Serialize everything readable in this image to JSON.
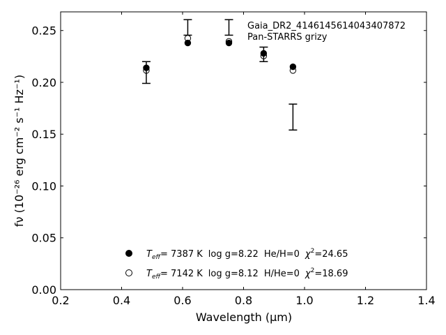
{
  "chart_data": {
    "type": "scatter",
    "title": "",
    "xlabel": "Wavelength",
    "xlabel_unit": "(μm)",
    "ylabel": "fν (10⁻²⁶ erg cm⁻² s⁻¹ Hz⁻¹)",
    "xlim": [
      0.2,
      1.4
    ],
    "ylim": [
      0.0,
      0.268
    ],
    "xticks": [
      0.2,
      0.4,
      0.6,
      0.8,
      1.0,
      1.2,
      1.4
    ],
    "xtick_labels": [
      "0.2",
      "0.4",
      "0.6",
      "0.8",
      "1.0",
      "1.2",
      "1.4"
    ],
    "yticks": [
      0.0,
      0.05,
      0.1,
      0.15,
      0.2,
      0.25
    ],
    "ytick_labels": [
      "0.00",
      "0.05",
      "0.10",
      "0.15",
      "0.20",
      "0.25"
    ],
    "grid": false,
    "annotation": {
      "line1": "Gaia_DR2_4146145614043407872",
      "line2": "Pan-STARRS grizy"
    },
    "observed": {
      "x": [
        0.481,
        0.617,
        0.752,
        0.866,
        0.962
      ],
      "y": [
        0.2095,
        0.253,
        0.253,
        0.227,
        0.1665
      ],
      "err": [
        0.0105,
        0.0075,
        0.0075,
        0.007,
        0.0125
      ]
    },
    "series": [
      {
        "marker": "filled-circle",
        "x": [
          0.481,
          0.617,
          0.752,
          0.866,
          0.962
        ],
        "y": [
          0.214,
          0.238,
          0.238,
          0.228,
          0.215
        ],
        "legend": {
          "teff_symbol": "T",
          "teff_sub": "eff",
          "teff_value": "=  7387 K",
          "logg": "log g=8.22",
          "comp": "He/H=0",
          "chi_symbol": "χ",
          "chi_sup": "2",
          "chi_value": "=24.65"
        }
      },
      {
        "marker": "open-circle",
        "x": [
          0.481,
          0.617,
          0.752,
          0.866,
          0.962
        ],
        "y": [
          0.2115,
          0.2425,
          0.2395,
          0.2255,
          0.2115
        ],
        "legend": {
          "teff_symbol": "T",
          "teff_sub": "eff",
          "teff_value": "=  7142 K",
          "logg": "log g=8.12",
          "comp": "H/He=0",
          "chi_symbol": "χ",
          "chi_sup": "2",
          "chi_value": "=18.69"
        }
      }
    ]
  }
}
